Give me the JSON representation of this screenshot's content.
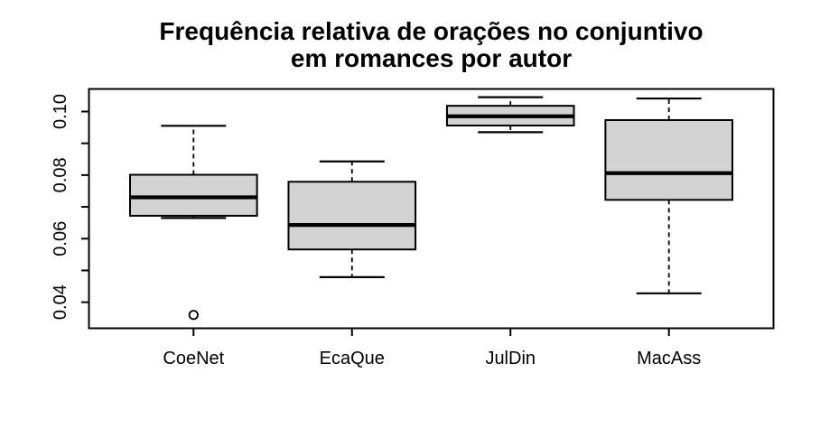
{
  "chart_data": {
    "type": "boxplot",
    "title": "Frequência relativa de orações no conjuntivo",
    "subtitle": "em romances por autor",
    "xlabel": "",
    "ylabel": "",
    "grid": false,
    "legend": "none",
    "categories": [
      "CoeNet",
      "EcaQue",
      "JulDin",
      "MacAss"
    ],
    "ylim": [
      0.0318,
      0.1071
    ],
    "yticks": [
      {
        "value": 0.04,
        "label": "0.04"
      },
      {
        "value": 0.05,
        "label": ""
      },
      {
        "value": 0.06,
        "label": "0.06"
      },
      {
        "value": 0.07,
        "label": ""
      },
      {
        "value": 0.08,
        "label": "0.08"
      },
      {
        "value": 0.09,
        "label": ""
      },
      {
        "value": 0.1,
        "label": "0.10"
      }
    ],
    "boxes": [
      {
        "label": "CoeNet",
        "whisker_low": 0.0665,
        "q1": 0.0672,
        "median": 0.073,
        "q3": 0.0801,
        "whisker_high": 0.0955,
        "outliers": [
          0.036
        ]
      },
      {
        "label": "EcaQue",
        "whisker_low": 0.0479,
        "q1": 0.0566,
        "median": 0.0643,
        "q3": 0.0779,
        "whisker_high": 0.0843,
        "outliers": []
      },
      {
        "label": "JulDin",
        "whisker_low": 0.0935,
        "q1": 0.0956,
        "median": 0.0985,
        "q3": 0.1018,
        "whisker_high": 0.1045,
        "outliers": []
      },
      {
        "label": "MacAss",
        "whisker_low": 0.0428,
        "q1": 0.0722,
        "median": 0.0806,
        "q3": 0.0973,
        "whisker_high": 0.1041,
        "outliers": []
      }
    ],
    "colors": {
      "box_fill": "#d3d3d3",
      "line": "#000000",
      "background": "#ffffff"
    }
  }
}
